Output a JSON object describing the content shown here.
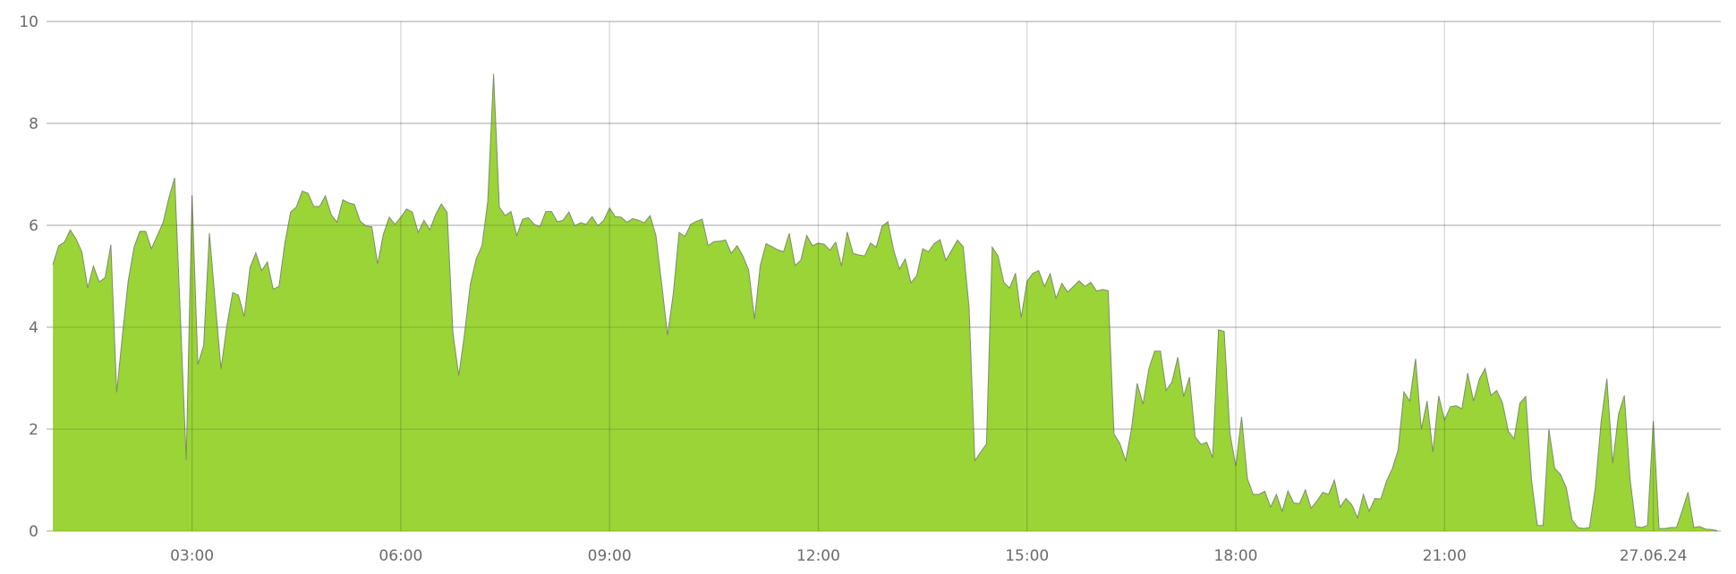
{
  "chart_data": {
    "type": "area",
    "title": "",
    "xlabel": "",
    "ylabel": "",
    "x_start": "01:00",
    "interval_minutes": 5,
    "x_ticks": [
      "03:00",
      "06:00",
      "09:00",
      "12:00",
      "15:00",
      "18:00",
      "21:00",
      "27.06.24"
    ],
    "y_ticks": [
      "0",
      "2",
      "4",
      "6",
      "8",
      "10"
    ],
    "ylim": [
      0,
      10
    ],
    "grid": true,
    "legend": "none",
    "colors": {
      "fill": "#9ad437",
      "stroke": "#7d8c6e",
      "grid": "#d4d4d4",
      "text": "#6b6b6b"
    },
    "series": [
      {
        "values": [
          5.23,
          5.6,
          5.67,
          5.91,
          5.73,
          5.48,
          4.77,
          5.2,
          4.89,
          4.97,
          5.62,
          2.72,
          3.84,
          4.91,
          5.57,
          5.88,
          5.88,
          5.54,
          5.8,
          6.05,
          6.54,
          6.93,
          4.2,
          1.4,
          6.59,
          3.27,
          3.64,
          5.85,
          4.5,
          3.18,
          4.03,
          4.68,
          4.63,
          4.21,
          5.17,
          5.46,
          5.11,
          5.28,
          4.75,
          4.8,
          5.65,
          6.26,
          6.36,
          6.67,
          6.63,
          6.37,
          6.37,
          6.58,
          6.21,
          6.06,
          6.5,
          6.44,
          6.41,
          6.08,
          5.99,
          5.97,
          5.24,
          5.82,
          6.16,
          6.02,
          6.16,
          6.32,
          6.26,
          5.86,
          6.1,
          5.91,
          6.21,
          6.42,
          6.25,
          3.88,
          3.05,
          3.88,
          4.84,
          5.34,
          5.6,
          6.47,
          8.97,
          6.36,
          6.19,
          6.27,
          5.8,
          6.12,
          6.15,
          6.02,
          5.97,
          6.27,
          6.27,
          6.07,
          6.1,
          6.26,
          5.99,
          6.05,
          6.02,
          6.17,
          5.99,
          6.1,
          6.34,
          6.17,
          6.16,
          6.06,
          6.13,
          6.1,
          6.05,
          6.19,
          5.8,
          4.84,
          3.84,
          4.66,
          5.86,
          5.78,
          6.02,
          6.08,
          6.12,
          5.6,
          5.68,
          5.69,
          5.71,
          5.45,
          5.6,
          5.4,
          5.12,
          4.16,
          5.21,
          5.64,
          5.58,
          5.52,
          5.48,
          5.84,
          5.21,
          5.32,
          5.8,
          5.6,
          5.65,
          5.63,
          5.51,
          5.67,
          5.2,
          5.87,
          5.45,
          5.42,
          5.4,
          5.65,
          5.57,
          5.98,
          6.07,
          5.51,
          5.14,
          5.34,
          4.87,
          5.02,
          5.54,
          5.48,
          5.64,
          5.72,
          5.31,
          5.51,
          5.71,
          5.58,
          4.4,
          1.38,
          1.55,
          1.71,
          5.57,
          5.4,
          4.88,
          4.77,
          5.06,
          4.19,
          4.9,
          5.06,
          5.11,
          4.8,
          5.05,
          4.57,
          4.86,
          4.69,
          4.8,
          4.91,
          4.8,
          4.88,
          4.71,
          4.74,
          4.72,
          1.9,
          1.72,
          1.38,
          2.0,
          2.9,
          2.49,
          3.18,
          3.53,
          3.53,
          2.76,
          2.93,
          3.41,
          2.64,
          3.02,
          1.85,
          1.7,
          1.74,
          1.44,
          3.95,
          3.92,
          1.92,
          1.27,
          2.24,
          1.03,
          0.72,
          0.72,
          0.78,
          0.47,
          0.72,
          0.39,
          0.79,
          0.55,
          0.54,
          0.81,
          0.45,
          0.59,
          0.76,
          0.72,
          1.0,
          0.47,
          0.64,
          0.52,
          0.26,
          0.72,
          0.39,
          0.64,
          0.63,
          0.98,
          1.23,
          1.59,
          2.73,
          2.55,
          3.38,
          2.0,
          2.55,
          1.55,
          2.65,
          2.18,
          2.44,
          2.46,
          2.4,
          3.1,
          2.55,
          2.98,
          3.19,
          2.66,
          2.76,
          2.51,
          1.96,
          1.81,
          2.51,
          2.64,
          1.0,
          0.11,
          0.11,
          2.0,
          1.23,
          1.11,
          0.85,
          0.22,
          0.07,
          0.05,
          0.07,
          0.85,
          2.14,
          2.99,
          1.33,
          2.29,
          2.66,
          1.03,
          0.09,
          0.07,
          0.11,
          2.16,
          0.05,
          0.05,
          0.07,
          0.07,
          0.41,
          0.76,
          0.07,
          0.09,
          0.04,
          0.03,
          0.01
        ]
      }
    ]
  }
}
